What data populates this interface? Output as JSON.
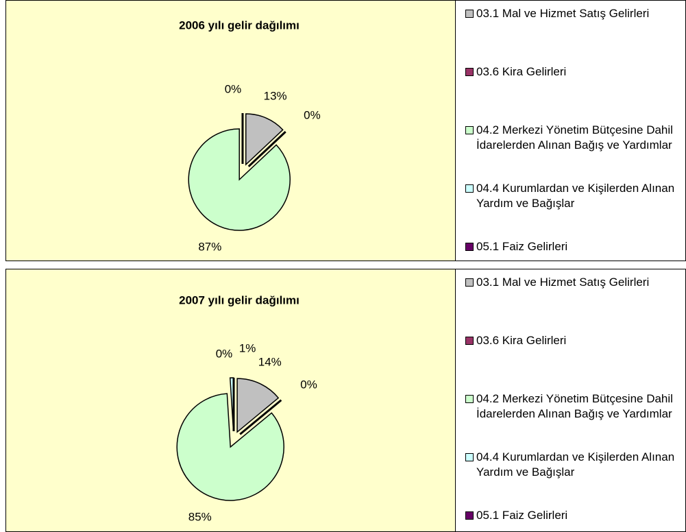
{
  "chart_data": [
    {
      "type": "pie",
      "title": "2006 yılı gelir dağılımı",
      "categories": [
        "03.1 Mal ve Hizmet Satış Gelirleri",
        "03.6 Kira Gelirleri",
        "04.2 Merkezi Yönetim Bütçesine Dahil İdarelerden Alınan Bağış ve Yardımlar",
        "04.4 Kurumlardan ve Kişilerden Alınan Yardım ve Bağışlar",
        "05.1 Faiz Gelirleri"
      ],
      "values": [
        13,
        0,
        87,
        null,
        0
      ],
      "value_labels": [
        "13%",
        "0%",
        "87%",
        null,
        "0%"
      ],
      "colors": [
        "#c0c0c0",
        "#993366",
        "#ccffcc",
        "#ccffff",
        "#660066"
      ]
    },
    {
      "type": "pie",
      "title": "2007 yılı gelir dağılımı",
      "categories": [
        "03.1 Mal ve Hizmet Satış Gelirleri",
        "03.6 Kira Gelirleri",
        "04.2 Merkezi Yönetim Bütçesine Dahil İdarelerden Alınan Bağış ve Yardımlar",
        "04.4 Kurumlardan ve Kişilerden Alınan Yardım ve Bağışlar",
        "05.1 Faiz Gelirleri"
      ],
      "values": [
        14,
        0,
        85,
        1,
        0
      ],
      "value_labels": [
        "14%",
        "0%",
        "85%",
        "1%",
        "0%"
      ],
      "colors": [
        "#c0c0c0",
        "#993366",
        "#ccffcc",
        "#ccffff",
        "#660066"
      ]
    }
  ]
}
